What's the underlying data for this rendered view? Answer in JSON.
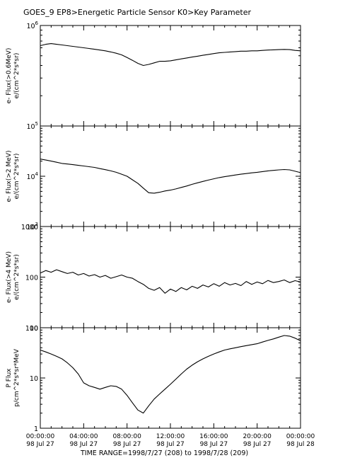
{
  "title": "GOES_9  EP8>Energetic Particle Sensor  K0>Key Parameter",
  "time_range_label": "TIME RANGE=1998/7/27 (208) to 1998/7/28 (209)",
  "x_axis": {
    "range_hours": [
      0,
      24
    ],
    "tick_hours": [
      0,
      4,
      8,
      12,
      16,
      20,
      24
    ],
    "tick_times": [
      "00:00:00",
      "04:00:00",
      "08:00:00",
      "12:00:00",
      "16:00:00",
      "20:00:00",
      "00:00:00"
    ],
    "tick_dates": [
      "98 Jul 27",
      "98 Jul 27",
      "98 Jul 27",
      "98 Jul 27",
      "98 Jul 27",
      "98 Jul 27",
      "98 Jul 28"
    ]
  },
  "chart_data": [
    {
      "type": "line",
      "ylabel_line1": "e- Flux(>0.6MeV)",
      "ylabel_line2": "e/(cm^2*s*sr)",
      "yscale": "log",
      "ylim": [
        100000,
        1000000
      ],
      "ytick_values": [
        100000,
        1000000
      ],
      "ytick_labels": [
        {
          "base": "10",
          "exp": "5"
        },
        {
          "base": "10",
          "exp": "6"
        }
      ],
      "x": [
        0,
        0.5,
        1,
        1.5,
        2,
        2.5,
        3,
        3.5,
        4,
        4.5,
        5,
        5.5,
        6,
        6.5,
        7,
        7.5,
        8,
        8.5,
        9,
        9.5,
        10,
        10.5,
        11,
        11.5,
        12,
        12.5,
        13,
        13.5,
        14,
        14.5,
        15,
        15.5,
        16,
        16.5,
        17,
        17.5,
        18,
        18.5,
        19,
        19.5,
        20,
        20.5,
        21,
        21.5,
        22,
        22.5,
        23,
        23.5,
        24
      ],
      "y": [
        630000,
        650000,
        660000,
        650000,
        640000,
        630000,
        620000,
        610000,
        600000,
        590000,
        580000,
        570000,
        560000,
        545000,
        530000,
        510000,
        480000,
        450000,
        420000,
        400000,
        410000,
        425000,
        440000,
        440000,
        445000,
        455000,
        465000,
        475000,
        485000,
        495000,
        505000,
        515000,
        525000,
        535000,
        540000,
        545000,
        550000,
        555000,
        555000,
        560000,
        560000,
        565000,
        570000,
        572000,
        575000,
        578000,
        575000,
        565000,
        560000
      ]
    },
    {
      "type": "line",
      "ylabel_line1": "e- Flux(>2 MeV)",
      "ylabel_line2": "e/(cm^2*s*sr)",
      "yscale": "log",
      "ylim": [
        1000,
        100000
      ],
      "ytick_values": [
        1000,
        10000
      ],
      "ytick_labels": [
        {
          "base": "10",
          "exp": "3"
        },
        {
          "base": "10",
          "exp": "4"
        }
      ],
      "x": [
        0,
        0.5,
        1,
        1.5,
        2,
        2.5,
        3,
        3.5,
        4,
        4.5,
        5,
        5.5,
        6,
        6.5,
        7,
        7.5,
        8,
        8.5,
        9,
        9.5,
        10,
        10.5,
        11,
        11.5,
        12,
        12.5,
        13,
        13.5,
        14,
        14.5,
        15,
        15.5,
        16,
        16.5,
        17,
        17.5,
        18,
        18.5,
        19,
        19.5,
        20,
        20.5,
        21,
        21.5,
        22,
        22.5,
        23,
        23.5,
        24
      ],
      "y": [
        22000,
        21000,
        20000,
        19000,
        18000,
        17500,
        17000,
        16500,
        16000,
        15500,
        15000,
        14200,
        13500,
        12800,
        12000,
        11000,
        10000,
        8500,
        7200,
        5800,
        4700,
        4600,
        4800,
        5100,
        5300,
        5600,
        6000,
        6400,
        6900,
        7400,
        7900,
        8400,
        8900,
        9400,
        9800,
        10200,
        10600,
        11000,
        11300,
        11700,
        12000,
        12400,
        12800,
        13100,
        13400,
        13600,
        13400,
        12600,
        11800
      ]
    },
    {
      "type": "line",
      "ylabel_line1": "e- Flux(>4 MeV)",
      "ylabel_line2": "e/(cm^2*s*sr)",
      "yscale": "log",
      "ylim": [
        10,
        1000
      ],
      "ytick_values": [
        10,
        100,
        1000
      ],
      "ytick_labels": [
        "10",
        "100",
        "1000"
      ],
      "x": [
        0,
        0.5,
        1,
        1.5,
        2,
        2.5,
        3,
        3.5,
        4,
        4.5,
        5,
        5.5,
        6,
        6.5,
        7,
        7.5,
        8,
        8.5,
        9,
        9.5,
        10,
        10.5,
        11,
        11.5,
        12,
        12.5,
        13,
        13.5,
        14,
        14.5,
        15,
        15.5,
        16,
        16.5,
        17,
        17.5,
        18,
        18.5,
        19,
        19.5,
        20,
        20.5,
        21,
        21.5,
        22,
        22.5,
        23,
        23.5,
        24
      ],
      "y": [
        120,
        135,
        125,
        140,
        128,
        118,
        125,
        110,
        118,
        105,
        112,
        100,
        108,
        95,
        102,
        110,
        100,
        95,
        82,
        72,
        60,
        55,
        62,
        48,
        58,
        52,
        62,
        56,
        66,
        60,
        70,
        64,
        74,
        66,
        78,
        70,
        75,
        68,
        82,
        72,
        80,
        74,
        86,
        78,
        82,
        88,
        78,
        85,
        80
      ]
    },
    {
      "type": "line",
      "ylabel_line1": "P Flux",
      "ylabel_line2": "p/cm^2*s*sr*MeV",
      "yscale": "log",
      "ylim": [
        1,
        100
      ],
      "ytick_values": [
        1,
        10,
        100
      ],
      "ytick_labels": [
        "1",
        "10",
        "100"
      ],
      "x": [
        0,
        0.5,
        1,
        1.5,
        2,
        2.5,
        3,
        3.5,
        4,
        4.5,
        5,
        5.5,
        6,
        6.5,
        7,
        7.5,
        8,
        8.5,
        9,
        9.5,
        10,
        10.5,
        11,
        11.5,
        12,
        12.5,
        13,
        13.5,
        14,
        14.5,
        15,
        15.5,
        16,
        16.5,
        17,
        17.5,
        18,
        18.5,
        19,
        19.5,
        20,
        20.5,
        21,
        21.5,
        22,
        22.5,
        23,
        23.5,
        24
      ],
      "y": [
        36,
        33,
        30,
        27,
        24,
        20,
        16,
        12,
        8,
        7,
        6.5,
        6,
        6.5,
        7,
        6.8,
        6,
        4.5,
        3.2,
        2.3,
        2,
        2.8,
        3.8,
        4.8,
        6,
        7.5,
        9.5,
        12,
        15,
        18,
        21,
        24,
        27,
        30,
        33,
        36,
        38,
        40,
        42,
        44,
        46,
        48,
        52,
        56,
        60,
        65,
        70,
        68,
        62,
        55
      ]
    }
  ]
}
